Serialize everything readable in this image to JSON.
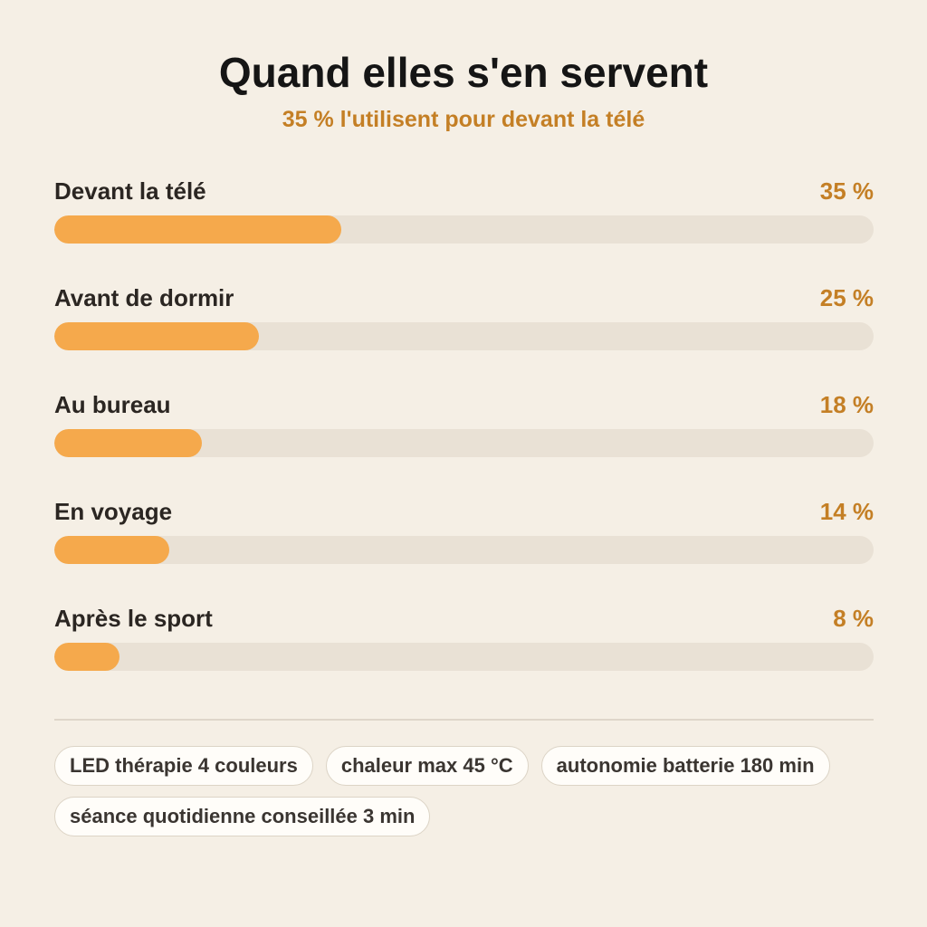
{
  "header": {
    "title": "Quand elles s'en servent",
    "subtitle": "35 % l'utilisent pour devant la télé"
  },
  "colors": {
    "accent": "#f5a94c",
    "accent_text": "#c47f25",
    "track": "#e9e1d5",
    "background": "#f5efe5"
  },
  "chart_data": {
    "type": "bar",
    "orientation": "horizontal",
    "title": "Quand elles s'en servent",
    "subtitle": "35 % l'utilisent pour devant la télé",
    "categories": [
      "Devant la télé",
      "Avant de dormir",
      "Au bureau",
      "En voyage",
      "Après le sport"
    ],
    "values": [
      35,
      25,
      18,
      14,
      8
    ],
    "value_labels": [
      "35 %",
      "25 %",
      "18 %",
      "14 %",
      "8 %"
    ],
    "unit": "%",
    "xlim": [
      0,
      100
    ],
    "grid": false,
    "legend": "none"
  },
  "chips": [
    "LED thérapie 4 couleurs",
    "chaleur max 45 °C",
    "autonomie batterie 180 min",
    "séance quotidienne conseillée 3 min"
  ]
}
